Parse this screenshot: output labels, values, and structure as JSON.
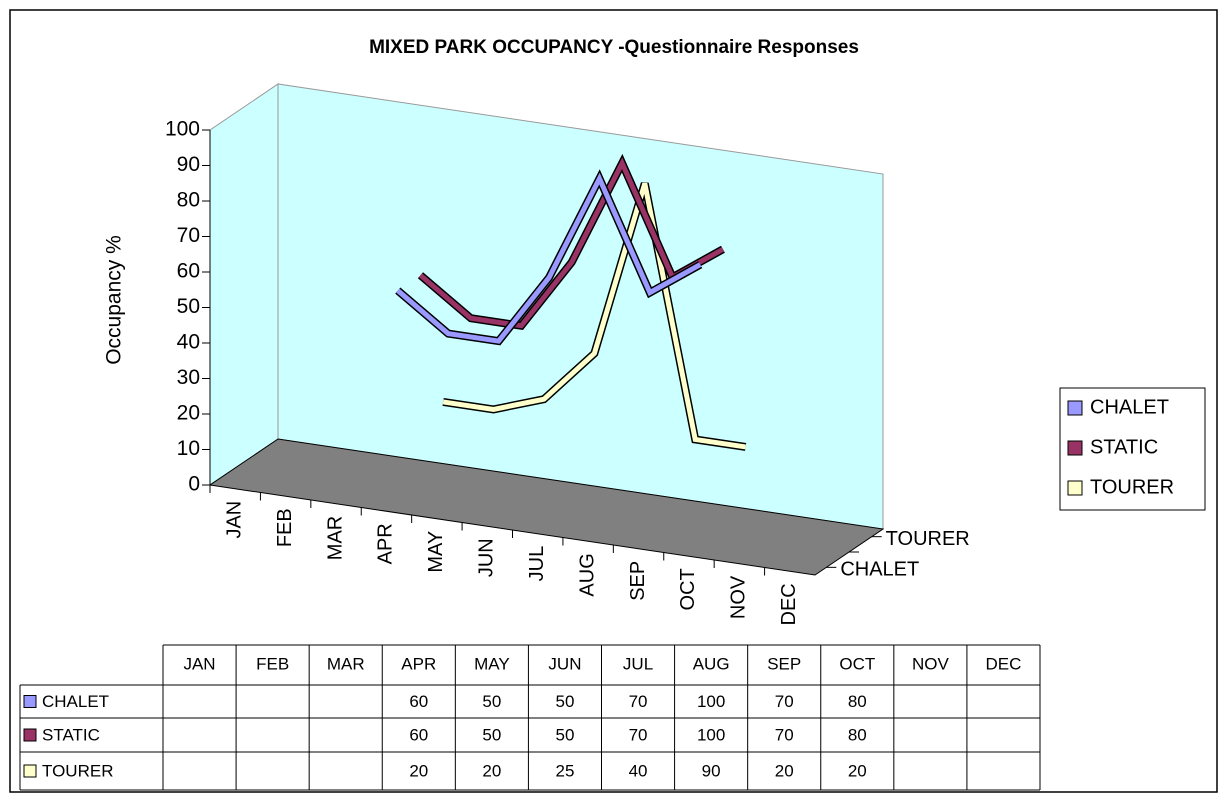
{
  "chart_data": {
    "type": "line3d",
    "title": "MIXED PARK OCCUPANCY -Questionnaire Responses",
    "y_label": "Occupancy %",
    "categories": [
      "JAN",
      "FEB",
      "MAR",
      "APR",
      "MAY",
      "JUN",
      "JUL",
      "AUG",
      "SEP",
      "OCT",
      "NOV",
      "DEC"
    ],
    "depth_categories": [
      "CHALET",
      null,
      "TOURER"
    ],
    "series": [
      {
        "name": "CHALET",
        "color": "#9999ff",
        "values": [
          null,
          null,
          null,
          60,
          50,
          50,
          70,
          100,
          70,
          80,
          null,
          null
        ]
      },
      {
        "name": "STATIC",
        "color": "#993366",
        "values": [
          null,
          null,
          null,
          60,
          50,
          50,
          70,
          100,
          70,
          80,
          null,
          null
        ]
      },
      {
        "name": "TOURER",
        "color": "#ffffcc",
        "values": [
          null,
          null,
          null,
          20,
          20,
          25,
          40,
          90,
          20,
          20,
          null,
          null
        ]
      }
    ],
    "ylim": [
      0,
      100
    ],
    "yticks": [
      0,
      10,
      20,
      30,
      40,
      50,
      60,
      70,
      80,
      90,
      100
    ],
    "wall_color": "#ccffff",
    "floor_color": "#808080",
    "legend": "right"
  }
}
